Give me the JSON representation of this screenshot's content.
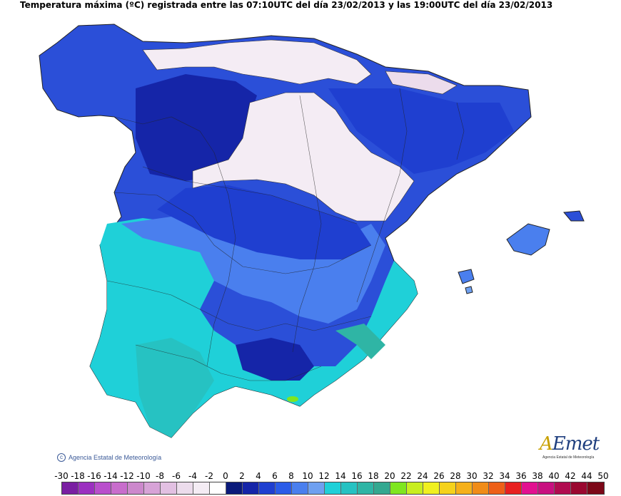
{
  "title": "Temperatura máxima (ºC) registrada entre las 07:10UTC del día 23/02/2013 y las 19:00UTC del día 23/02/2013",
  "copyright": "Agencia Estatal de Meteorología",
  "logo": {
    "text_a": "A",
    "text_rest": "Emet",
    "sub": "Agencia Estatal de Meteorología"
  },
  "legend": {
    "labels": [
      "-30",
      "-18",
      "-16",
      "-14",
      "-12",
      "-10",
      "-8",
      "-6",
      "-4",
      "-2",
      "0",
      "2",
      "4",
      "6",
      "8",
      "10",
      "12",
      "14",
      "16",
      "18",
      "20",
      "22",
      "24",
      "26",
      "28",
      "30",
      "32",
      "34",
      "36",
      "38",
      "40",
      "42",
      "44",
      "50"
    ],
    "colors": [
      "#7a1fa2",
      "#9b30c0",
      "#b94fcc",
      "#c86dcc",
      "#cc88cc",
      "#d7a3d7",
      "#e2c0e2",
      "#ecdcec",
      "#f4ecf4",
      "#ffffff",
      "#0a1a7a",
      "#1525a8",
      "#1f3fd0",
      "#2b5ce8",
      "#4a7fee",
      "#6fa0f0",
      "#1fd0d8",
      "#26c2c2",
      "#2fb5a5",
      "#34a890",
      "#7fe620",
      "#c8ee20",
      "#f0f020",
      "#f5d21c",
      "#f5b01a",
      "#f08c18",
      "#ee6018",
      "#e82020",
      "#e21090",
      "#c81080",
      "#b00c50",
      "#9a0830",
      "#7c0818"
    ]
  },
  "map_colors": {
    "sea": "#ffffff",
    "snow": "#f4ecf4",
    "very_cold": "#1a2aa8",
    "cold": "#2b4fd8",
    "cool": "#4a7fee",
    "mild": "#6fa0f0",
    "warm_cyan": "#1fd0d8",
    "teal": "#26c2c2",
    "green": "#7fe620",
    "border": "#222222"
  }
}
